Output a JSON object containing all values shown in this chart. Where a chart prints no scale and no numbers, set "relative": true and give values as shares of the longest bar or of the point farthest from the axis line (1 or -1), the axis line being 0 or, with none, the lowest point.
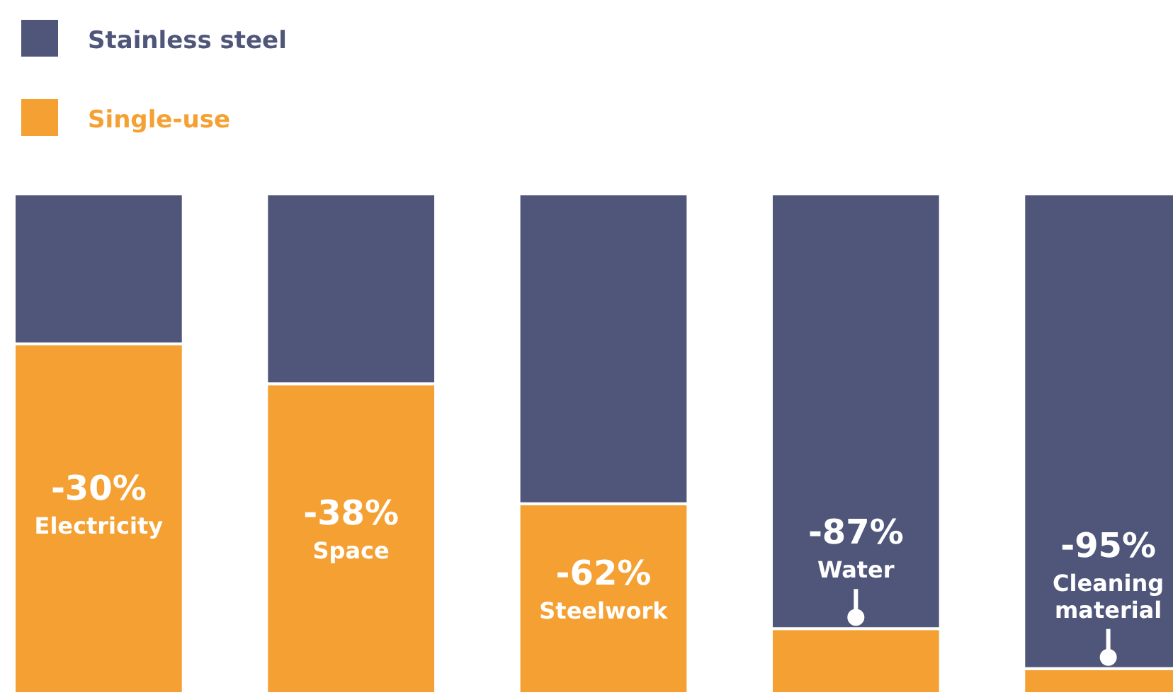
{
  "chart_data": {
    "type": "bar",
    "stacked": true,
    "relative": true,
    "legend": "top left",
    "categories": [
      "Electricity",
      "Space",
      "Steelwork",
      "Water",
      "Cleaning material"
    ],
    "series": [
      {
        "name": "Single-use",
        "color": "#f5a033",
        "values": [
          0.7,
          0.62,
          0.38,
          0.13,
          0.05
        ]
      },
      {
        "name": "Stainless steel",
        "color": "#4f567a",
        "values": [
          0.3,
          0.38,
          0.62,
          0.87,
          0.95
        ]
      }
    ],
    "annotations": [
      "-30%",
      "-38%",
      "-62%",
      "-87%",
      "-95%"
    ]
  }
}
